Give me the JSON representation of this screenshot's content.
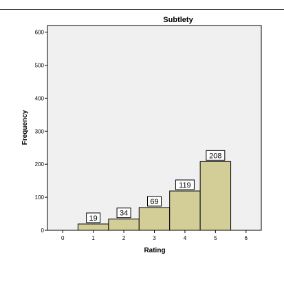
{
  "chart_data": {
    "type": "bar",
    "title": "Subtlety",
    "xlabel": "Rating",
    "ylabel": "Frequency",
    "categories": [
      "1",
      "2",
      "3",
      "4",
      "5"
    ],
    "x": [
      1,
      2,
      3,
      4,
      5
    ],
    "values": [
      19,
      34,
      69,
      119,
      208
    ],
    "data_labels": [
      "19",
      "34",
      "69",
      "119",
      "208"
    ],
    "xlim": [
      -0.5,
      6.5
    ],
    "ylim": [
      0,
      620
    ],
    "xticks": [
      "0",
      "1",
      "2",
      "3",
      "4",
      "5",
      "6"
    ],
    "yticks": [
      "0",
      "100",
      "200",
      "300",
      "400",
      "500",
      "600"
    ],
    "grid": false,
    "colors": {
      "plot_background": "#f0f0f0",
      "bar_fill": "#d3ce97",
      "bar_stroke": "#000000"
    }
  }
}
